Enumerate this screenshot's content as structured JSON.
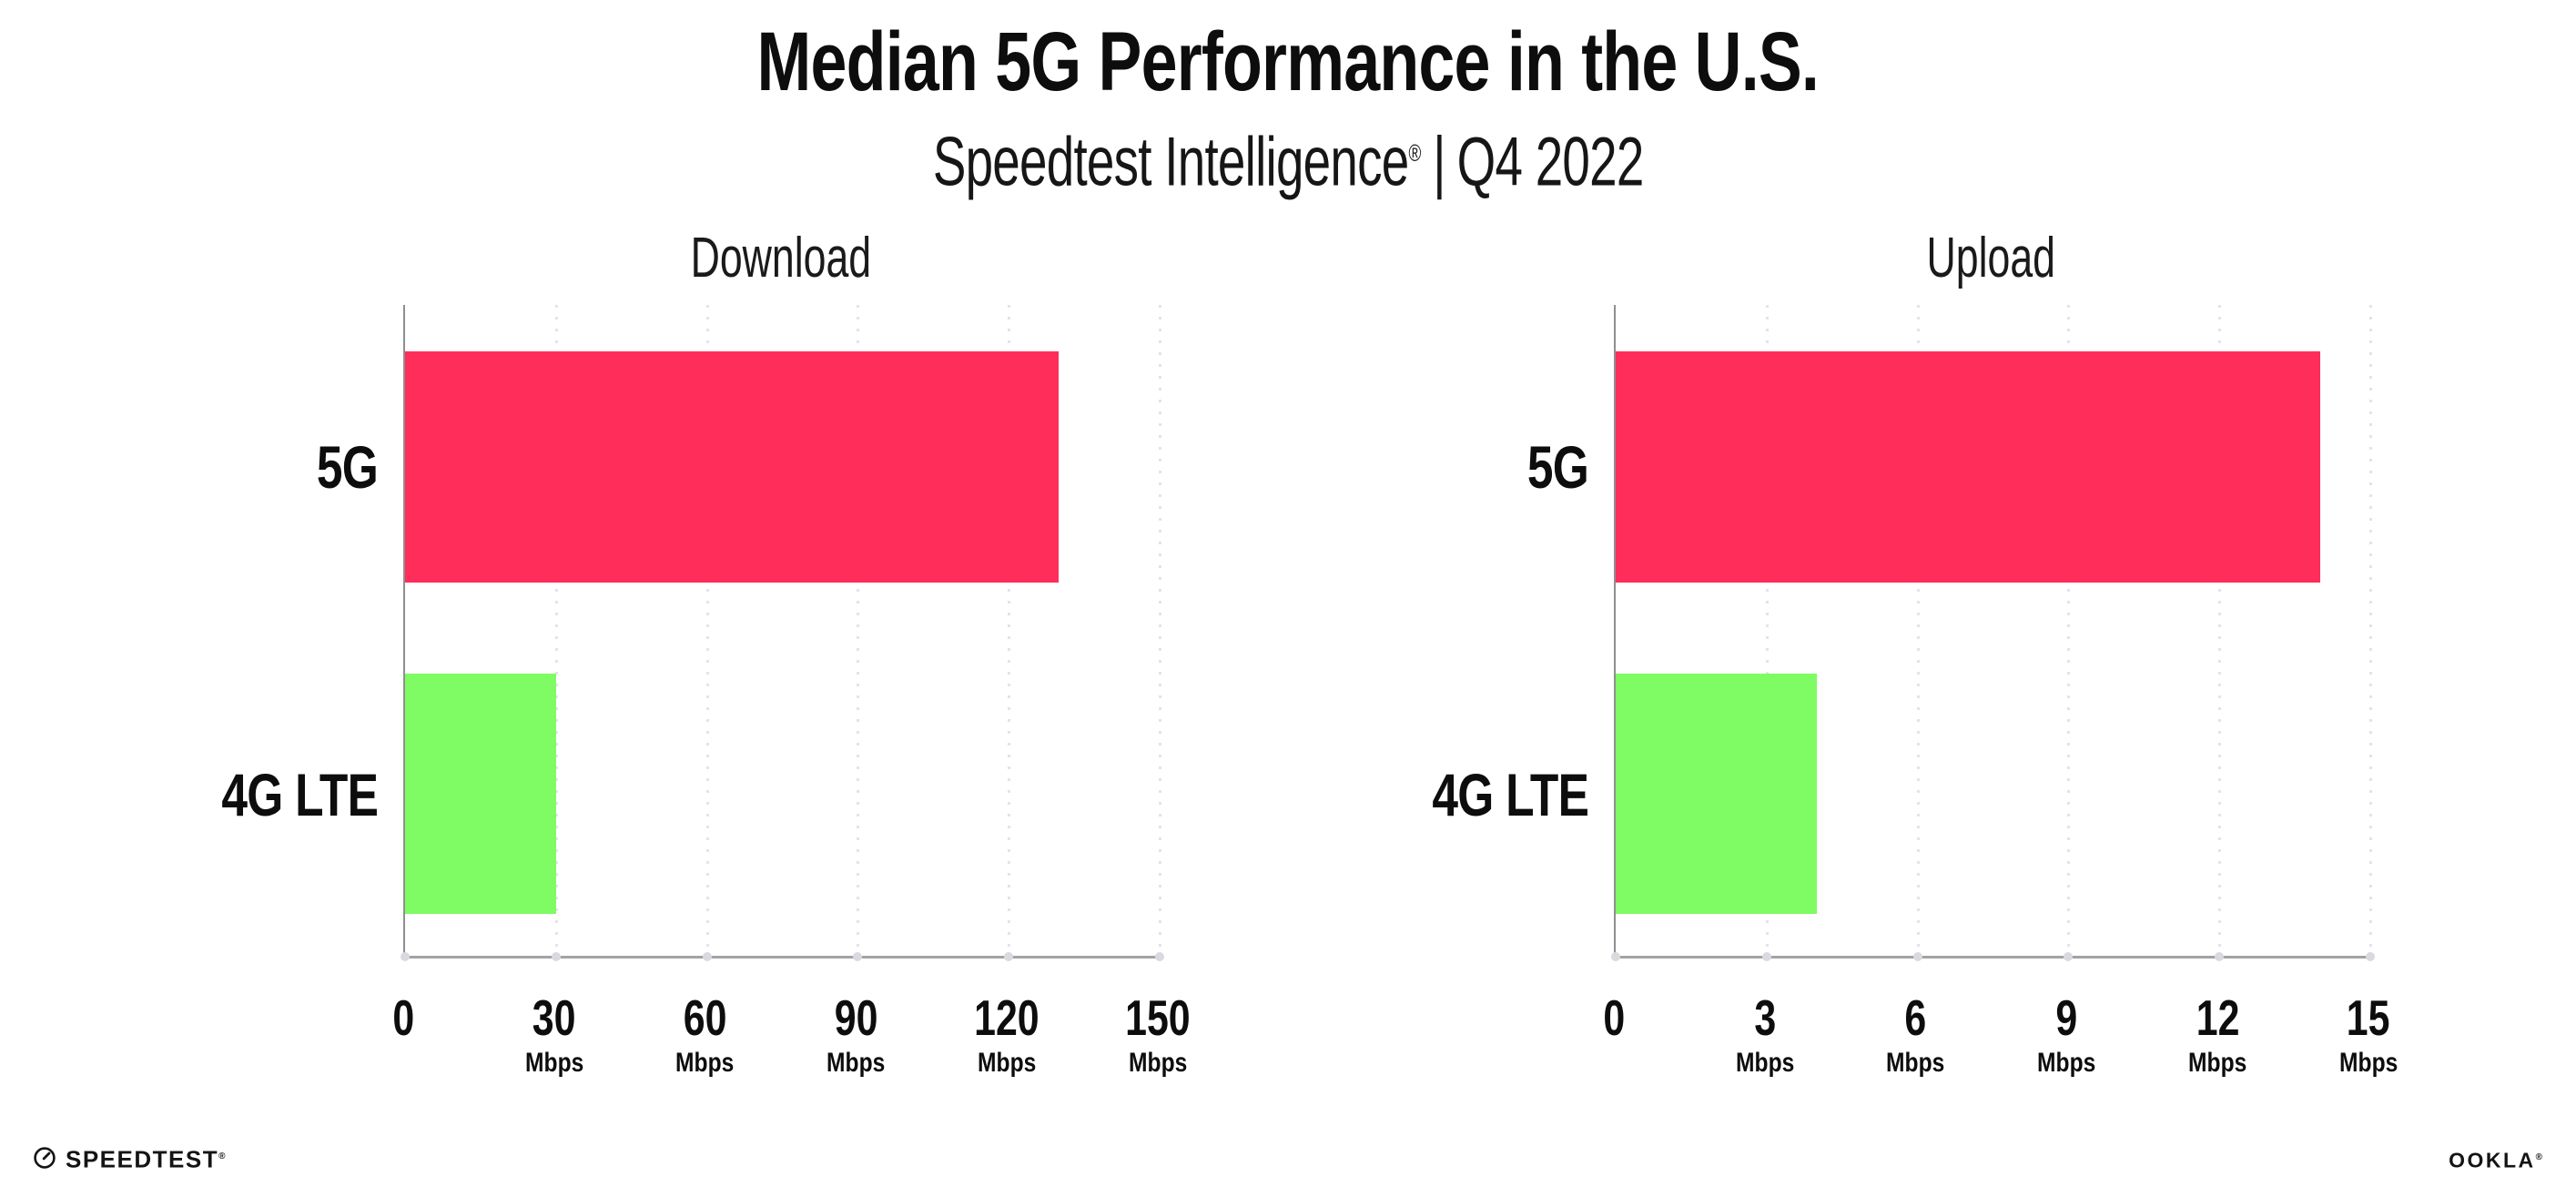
{
  "header": {
    "title": "Median 5G Performance in the U.S.",
    "subtitle_brand": "Speedtest Intelligence",
    "subtitle_reg": "®",
    "subtitle_separator": "|",
    "subtitle_period": "Q4 2022"
  },
  "chart_data": [
    {
      "type": "bar",
      "orientation": "horizontal",
      "title": "Download",
      "categories": [
        "5G",
        "4G LTE"
      ],
      "values": [
        130,
        30
      ],
      "unit": "Mbps",
      "xlabel": "",
      "ylabel": "",
      "xlim": [
        0,
        150
      ],
      "xticks": [
        0,
        30,
        60,
        90,
        120,
        150
      ],
      "bar_colors": [
        "#FF2D5A",
        "#7FFB63"
      ],
      "grid": "dotted-vertical",
      "legend": "none"
    },
    {
      "type": "bar",
      "orientation": "horizontal",
      "title": "Upload",
      "categories": [
        "5G",
        "4G LTE"
      ],
      "values": [
        14,
        4
      ],
      "unit": "Mbps",
      "xlabel": "",
      "ylabel": "",
      "xlim": [
        0,
        15
      ],
      "xticks": [
        0,
        3,
        6,
        9,
        12,
        15
      ],
      "bar_colors": [
        "#FF2D5A",
        "#7FFB63"
      ],
      "grid": "dotted-vertical",
      "legend": "none"
    }
  ],
  "footer": {
    "speedtest_logo_text": "SPEEDTEST",
    "speedtest_logo_reg": "®",
    "ookla_logo_text": "OOKLA",
    "ookla_logo_reg": "®"
  },
  "colors": {
    "bar_5g": "#FF2D5A",
    "bar_4g_lte": "#7FFB63",
    "axis": "#9c9c9c",
    "gridline": "#e3e3eb",
    "text": "#111111",
    "background": "#ffffff"
  }
}
